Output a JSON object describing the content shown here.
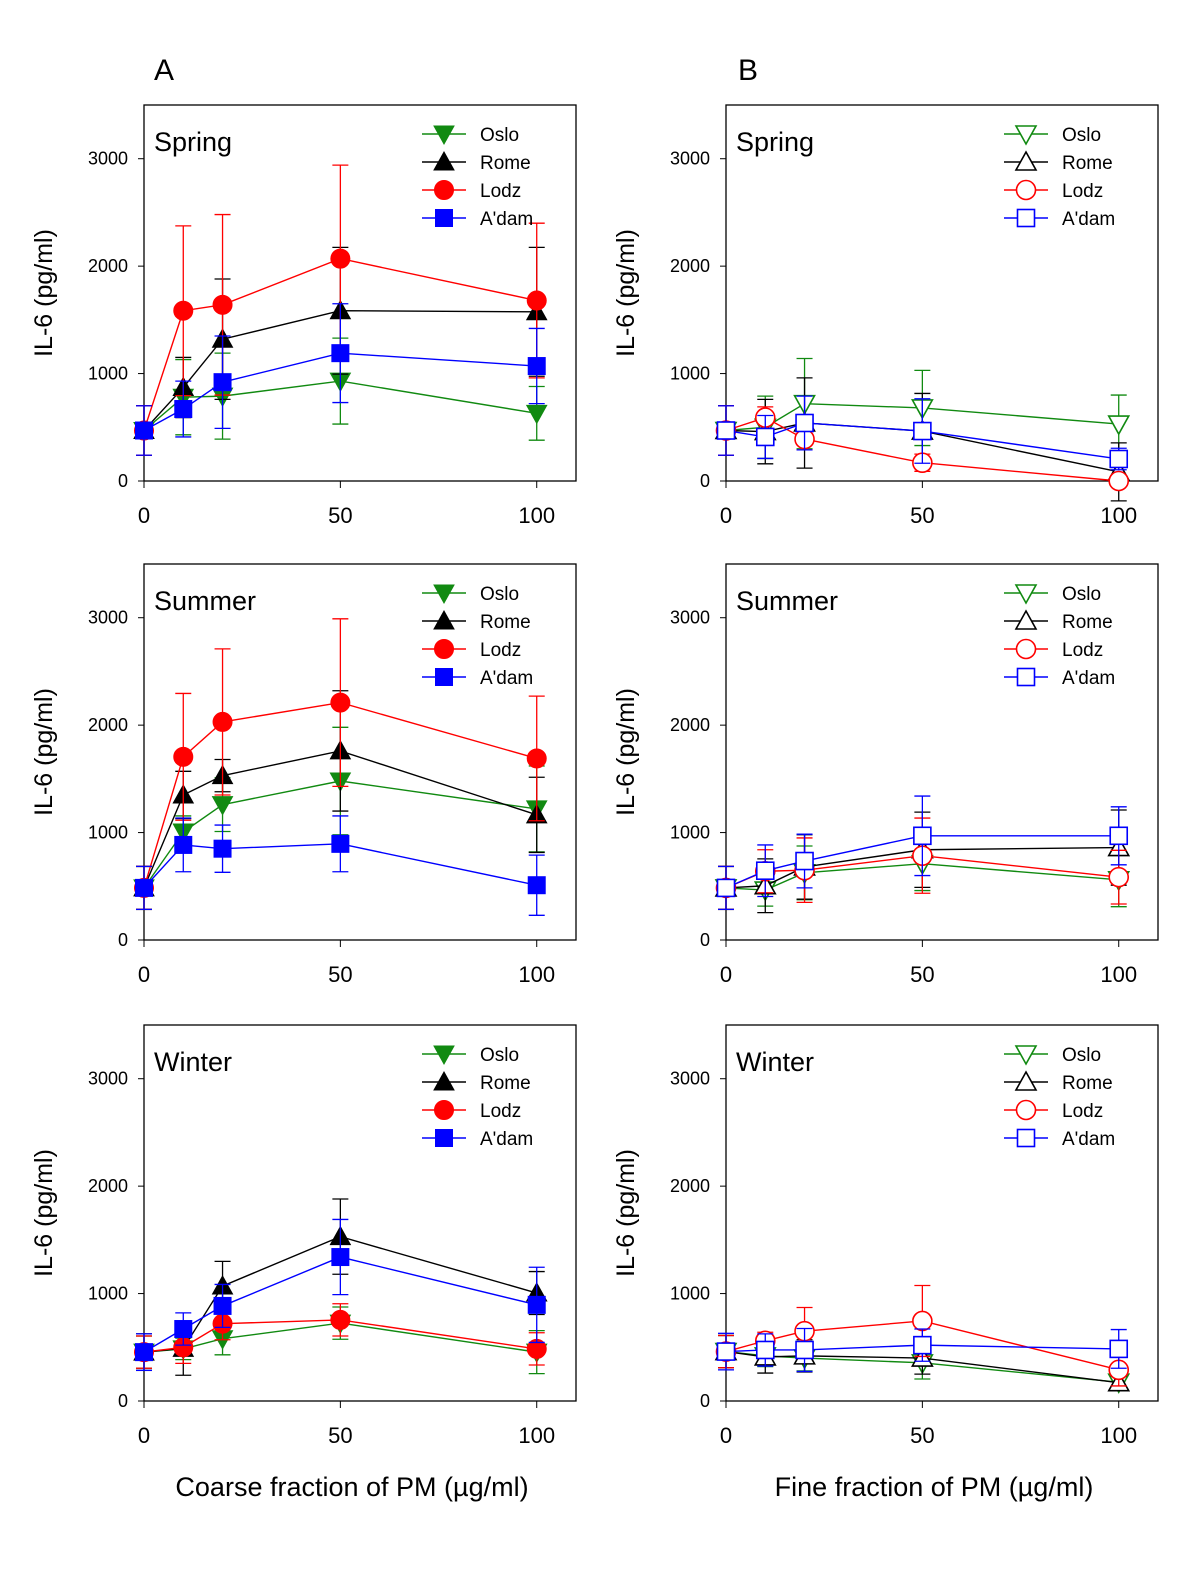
{
  "panel_letters": [
    "A",
    "B"
  ],
  "xlabels": [
    "Coarse fraction of PM (µg/ml)",
    "Fine fraction of PM (µg/ml)"
  ],
  "colors": {
    "Oslo": "#118a11",
    "Rome": "#000000",
    "Lodz": "#ff0000",
    "A'dam": "#0000ff"
  },
  "markers": {
    "Oslo": "triangle-down",
    "Rome": "triangle-up",
    "Lodz": "circle",
    "A'dam": "square"
  },
  "chart_data": [
    {
      "type": "line",
      "panel": "A",
      "title": "Spring",
      "ylabel": "IL-6 (pg/ml)",
      "xlabel": "",
      "x": [
        0,
        10,
        20,
        50,
        100
      ],
      "xlim": [
        0,
        110
      ],
      "ylim": [
        0,
        3500
      ],
      "xticks": [
        0,
        50,
        100
      ],
      "yticks": [
        0,
        1000,
        2000,
        3000
      ],
      "filled": true,
      "legend": "top-right",
      "series": [
        {
          "name": "Oslo",
          "values": [
            470,
            780,
            790,
            930,
            630
          ],
          "err": [
            230,
            350,
            400,
            400,
            250
          ]
        },
        {
          "name": "Rome",
          "values": [
            470,
            870,
            1320,
            1585,
            1575
          ],
          "err": [
            230,
            280,
            560,
            590,
            600
          ]
        },
        {
          "name": "Lodz",
          "values": [
            470,
            1585,
            1640,
            2070,
            1680
          ],
          "err": [
            230,
            790,
            840,
            870,
            720
          ]
        },
        {
          "name": "A'dam",
          "values": [
            470,
            670,
            920,
            1190,
            1070
          ],
          "err": [
            230,
            260,
            430,
            460,
            350
          ]
        }
      ]
    },
    {
      "type": "line",
      "panel": "B",
      "title": "Spring",
      "ylabel": "IL-6 (pg/ml)",
      "xlabel": "",
      "x": [
        0,
        10,
        20,
        50,
        100
      ],
      "xlim": [
        0,
        110
      ],
      "ylim": [
        0,
        3500
      ],
      "xticks": [
        0,
        50,
        100
      ],
      "yticks": [
        0,
        1000,
        2000,
        3000
      ],
      "filled": false,
      "legend": "top-right",
      "series": [
        {
          "name": "Oslo",
          "values": [
            470,
            500,
            720,
            680,
            530
          ],
          "err": [
            230,
            290,
            420,
            350,
            270
          ]
        },
        {
          "name": "Rome",
          "values": [
            470,
            460,
            540,
            465,
            85
          ],
          "err": [
            230,
            300,
            420,
            350,
            270
          ]
        },
        {
          "name": "Lodz",
          "values": [
            470,
            590,
            390,
            170,
            0
          ],
          "err": [
            230,
            100,
            100,
            80,
            30
          ]
        },
        {
          "name": "A'dam",
          "values": [
            470,
            410,
            540,
            465,
            205
          ],
          "err": [
            230,
            200,
            250,
            300,
            100
          ]
        }
      ]
    },
    {
      "type": "line",
      "panel": "A",
      "title": "Summer",
      "ylabel": "IL-6 (pg/ml)",
      "xlabel": "",
      "x": [
        0,
        10,
        20,
        50,
        100
      ],
      "xlim": [
        0,
        110
      ],
      "ylim": [
        0,
        3500
      ],
      "xticks": [
        0,
        50,
        100
      ],
      "yticks": [
        0,
        1000,
        2000,
        3000
      ],
      "filled": true,
      "legend": "top-right",
      "series": [
        {
          "name": "Oslo",
          "values": [
            485,
            1005,
            1260,
            1480,
            1220
          ],
          "err": [
            200,
            150,
            250,
            500,
            400
          ]
        },
        {
          "name": "Rome",
          "values": [
            485,
            1350,
            1530,
            1760,
            1165
          ],
          "err": [
            200,
            220,
            150,
            560,
            350
          ]
        },
        {
          "name": "Lodz",
          "values": [
            485,
            1705,
            2030,
            2210,
            1690
          ],
          "err": [
            200,
            590,
            680,
            780,
            580
          ]
        },
        {
          "name": "A'dam",
          "values": [
            485,
            885,
            850,
            895,
            510
          ],
          "err": [
            200,
            250,
            220,
            260,
            280
          ]
        }
      ]
    },
    {
      "type": "line",
      "panel": "B",
      "title": "Summer",
      "ylabel": "IL-6 (pg/ml)",
      "xlabel": "",
      "x": [
        0,
        10,
        20,
        50,
        100
      ],
      "xlim": [
        0,
        110
      ],
      "ylim": [
        0,
        3500
      ],
      "xticks": [
        0,
        50,
        100
      ],
      "yticks": [
        0,
        1000,
        2000,
        3000
      ],
      "filled": false,
      "legend": "top-right",
      "series": [
        {
          "name": "Oslo",
          "values": [
            485,
            465,
            625,
            710,
            560
          ],
          "err": [
            200,
            150,
            250,
            250,
            250
          ]
        },
        {
          "name": "Rome",
          "values": [
            485,
            505,
            680,
            840,
            860
          ],
          "err": [
            200,
            250,
            300,
            350,
            350
          ]
        },
        {
          "name": "Lodz",
          "values": [
            485,
            640,
            650,
            785,
            585
          ],
          "err": [
            200,
            200,
            300,
            350,
            250
          ]
        },
        {
          "name": "A'dam",
          "values": [
            485,
            645,
            735,
            970,
            970
          ],
          "err": [
            200,
            240,
            250,
            370,
            270
          ]
        }
      ]
    },
    {
      "type": "line",
      "panel": "A",
      "title": "Winter",
      "ylabel": "IL-6 (pg/ml)",
      "xlabel": "Coarse fraction of PM (µg/ml)",
      "x": [
        0,
        10,
        20,
        50,
        100
      ],
      "xlim": [
        0,
        110
      ],
      "ylim": [
        0,
        3500
      ],
      "xticks": [
        0,
        50,
        100
      ],
      "yticks": [
        0,
        1000,
        2000,
        3000
      ],
      "filled": true,
      "legend": "top-right",
      "series": [
        {
          "name": "Oslo",
          "values": [
            455,
            485,
            580,
            725,
            455
          ],
          "err": [
            150,
            100,
            150,
            150,
            200
          ]
        },
        {
          "name": "Rome",
          "values": [
            455,
            490,
            1070,
            1530,
            1005
          ],
          "err": [
            170,
            250,
            230,
            350,
            200
          ]
        },
        {
          "name": "Lodz",
          "values": [
            455,
            500,
            720,
            755,
            485
          ],
          "err": [
            150,
            150,
            150,
            150,
            150
          ]
        },
        {
          "name": "A'dam",
          "values": [
            455,
            670,
            885,
            1340,
            895
          ],
          "err": [
            170,
            150,
            200,
            350,
            350
          ]
        }
      ]
    },
    {
      "type": "line",
      "panel": "B",
      "title": "Winter",
      "ylabel": "IL-6 (pg/ml)",
      "xlabel": "Fine fraction of PM (µg/ml)",
      "x": [
        0,
        10,
        20,
        50,
        100
      ],
      "xlim": [
        0,
        110
      ],
      "ylim": [
        0,
        3500
      ],
      "xticks": [
        0,
        50,
        100
      ],
      "yticks": [
        0,
        1000,
        2000,
        3000
      ],
      "filled": false,
      "legend": "top-right",
      "series": [
        {
          "name": "Oslo",
          "values": [
            460,
            420,
            400,
            355,
            175
          ],
          "err": [
            150,
            100,
            120,
            150,
            50
          ]
        },
        {
          "name": "Rome",
          "values": [
            460,
            410,
            420,
            400,
            170
          ],
          "err": [
            150,
            150,
            150,
            150,
            60
          ]
        },
        {
          "name": "Lodz",
          "values": [
            460,
            560,
            650,
            745,
            290
          ],
          "err": [
            150,
            80,
            220,
            330,
            150
          ]
        },
        {
          "name": "A'dam",
          "values": [
            460,
            475,
            475,
            520,
            485
          ],
          "err": [
            170,
            150,
            200,
            150,
            180
          ]
        }
      ]
    }
  ]
}
